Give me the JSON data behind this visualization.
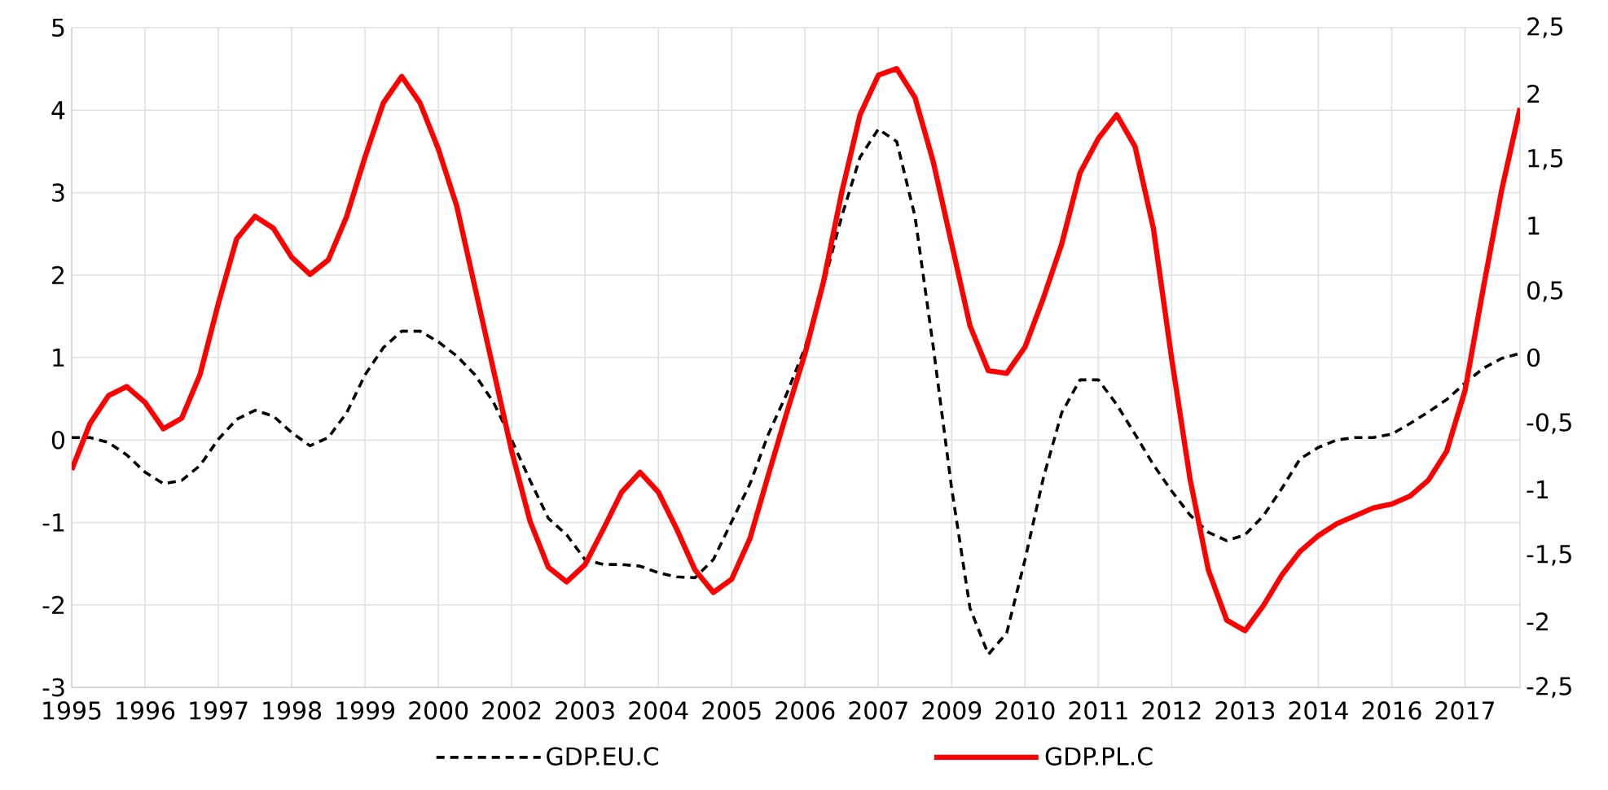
{
  "chart_data": {
    "type": "line",
    "categories": [
      "1995",
      null,
      null,
      null,
      "1996",
      null,
      null,
      null,
      "1997",
      null,
      null,
      null,
      "1998",
      null,
      null,
      null,
      "1999",
      null,
      null,
      null,
      "2000",
      null,
      null,
      null,
      "2002",
      null,
      null,
      null,
      "2003",
      null,
      null,
      null,
      "2004",
      null,
      null,
      null,
      "2005",
      null,
      null,
      null,
      "2006",
      null,
      null,
      null,
      "2007",
      null,
      null,
      null,
      "2009",
      null,
      null,
      null,
      "2010",
      null,
      null,
      null,
      "2011",
      null,
      null,
      null,
      "2012",
      null,
      null,
      null,
      "2013",
      null,
      null,
      null,
      "2014",
      null,
      null,
      null,
      "2016",
      null,
      null,
      null,
      "2017",
      null,
      null,
      null
    ],
    "series": [
      {
        "name": "GDP.EU.C",
        "color": "#000000",
        "line_style": "dashed",
        "values": [
          0.03,
          0.03,
          -0.03,
          -0.18,
          -0.39,
          -0.53,
          -0.49,
          -0.31,
          0.01,
          0.25,
          0.36,
          0.29,
          0.09,
          -0.07,
          0.03,
          0.33,
          0.79,
          1.12,
          1.32,
          1.32,
          1.19,
          1.02,
          0.79,
          0.46,
          0.0,
          -0.49,
          -0.95,
          -1.15,
          -1.45,
          -1.51,
          -1.51,
          -1.53,
          -1.61,
          -1.66,
          -1.67,
          -1.45,
          -0.99,
          -0.53,
          0.07,
          0.56,
          1.12,
          1.88,
          2.71,
          3.43,
          3.77,
          3.62,
          2.71,
          1.12,
          -0.59,
          -2.04,
          -2.6,
          -2.34,
          -1.45,
          -0.46,
          0.33,
          0.73,
          0.73,
          0.43,
          0.07,
          -0.3,
          -0.62,
          -0.91,
          -1.12,
          -1.22,
          -1.15,
          -0.92,
          -0.59,
          -0.23,
          -0.09,
          0.0,
          0.03,
          0.03,
          0.07,
          0.2,
          0.34,
          0.49,
          0.69,
          0.87,
          0.99,
          1.05
        ]
      },
      {
        "name": "GDP.PL.C",
        "color": "#ff0000",
        "line_style": "solid",
        "axis": "y2",
        "values": [
          -0.85,
          -0.5,
          -0.29,
          -0.22,
          -0.34,
          -0.54,
          -0.46,
          -0.13,
          0.41,
          0.9,
          1.07,
          0.98,
          0.76,
          0.63,
          0.74,
          1.07,
          1.52,
          1.93,
          2.13,
          1.93,
          1.58,
          1.15,
          0.53,
          -0.09,
          -0.71,
          -1.24,
          -1.59,
          -1.7,
          -1.57,
          -1.3,
          -1.02,
          -0.87,
          -1.02,
          -1.3,
          -1.61,
          -1.78,
          -1.68,
          -1.37,
          -0.89,
          -0.42,
          0.03,
          0.57,
          1.25,
          1.84,
          2.14,
          2.19,
          1.97,
          1.48,
          0.86,
          0.24,
          -0.1,
          -0.12,
          0.08,
          0.45,
          0.86,
          1.4,
          1.66,
          1.84,
          1.6,
          0.98,
          -0.01,
          -0.92,
          -1.61,
          -1.99,
          -2.07,
          -1.88,
          -1.65,
          -1.47,
          -1.35,
          -1.26,
          -1.2,
          -1.14,
          -1.11,
          -1.05,
          -0.93,
          -0.71,
          -0.25,
          0.53,
          1.27,
          1.89
        ]
      }
    ],
    "ylim": [
      -3,
      5
    ],
    "yticks": [
      -3,
      -2,
      -1,
      0,
      1,
      2,
      3,
      4,
      5
    ],
    "y2lim": [
      -2.5,
      2.5
    ],
    "y2ticks": [
      {
        "value": -2.5,
        "label": "-2,5"
      },
      -2,
      {
        "value": -1.5,
        "label": "-1,5"
      },
      -1,
      {
        "value": -0.5,
        "label": "-0,5"
      },
      0,
      {
        "value": 0.5,
        "label": "0,5"
      },
      1,
      {
        "value": 1.5,
        "label": "1,5"
      },
      2,
      {
        "value": 2.5,
        "label": "2,5"
      }
    ],
    "grid": true,
    "legend": "bottom",
    "marker": "none"
  }
}
